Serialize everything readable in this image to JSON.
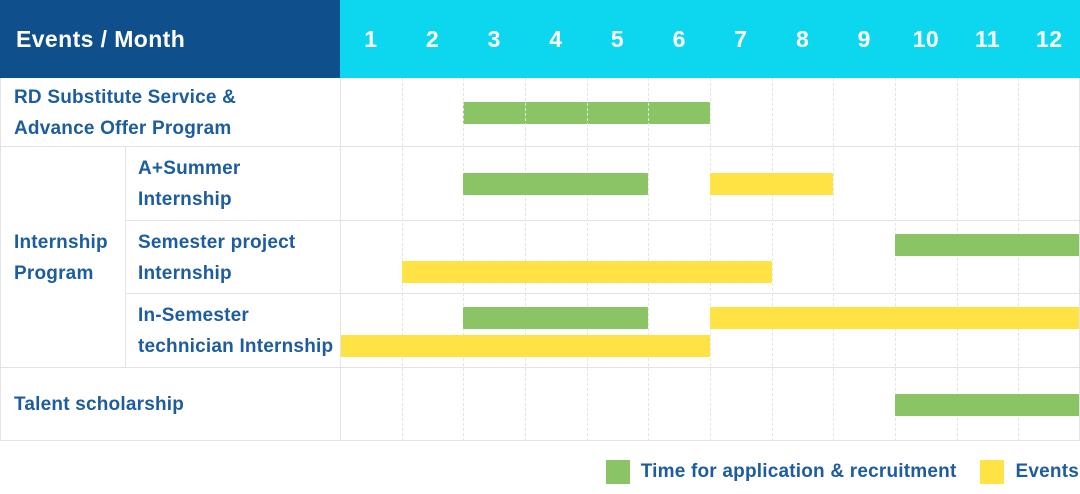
{
  "header": {
    "label_column_title": "Events / Month",
    "month_labels": [
      "1",
      "2",
      "3",
      "4",
      "5",
      "6",
      "7",
      "8",
      "9",
      "10",
      "11",
      "12"
    ]
  },
  "colors": {
    "header_bg": "#0F4F8C",
    "months_bg": "#0CD7EF",
    "label_text": "#1D5C9E",
    "application": "#8AC465",
    "event": "#FFE344"
  },
  "legend": {
    "items": [
      {
        "kind": "application",
        "label": "Time for application & recruitment"
      },
      {
        "kind": "event",
        "label": "Events"
      }
    ]
  },
  "chart_data": {
    "type": "gantt",
    "x_axis": {
      "label": "Month",
      "min": 1,
      "max": 12
    },
    "series_meaning": {
      "application": "Time for application & recruitment",
      "event": "Events"
    },
    "rows": [
      {
        "label": "RD Substitute Service & Advance Offer Program",
        "label_lines": [
          "RD Substitute Service &",
          "Advance Offer Program"
        ],
        "bars": [
          {
            "kind": "application",
            "start": 3,
            "end": 6,
            "lane": "center"
          }
        ]
      },
      {
        "sub": true,
        "group": {
          "label": "Internship Program",
          "label_lines": [
            "Internship",
            "Program"
          ],
          "span": 3
        },
        "label": "A+Summer Internship",
        "label_lines": [
          "A+Summer",
          "Internship"
        ],
        "bars": [
          {
            "kind": "application",
            "start": 3,
            "end": 5,
            "lane": "center"
          },
          {
            "kind": "event",
            "start": 7,
            "end": 8,
            "lane": "center"
          }
        ]
      },
      {
        "sub": true,
        "label": "Semester project Internship",
        "label_lines": [
          "Semester project",
          "Internship"
        ],
        "bars": [
          {
            "kind": "application",
            "start": 10,
            "end": 12,
            "lane": "top"
          },
          {
            "kind": "event",
            "start": 2,
            "end": 7,
            "lane": "bottom"
          }
        ]
      },
      {
        "sub": true,
        "label": "In-Semester technician Internship",
        "label_lines": [
          "In-Semester",
          "technician Internship"
        ],
        "bars": [
          {
            "kind": "application",
            "start": 3,
            "end": 5,
            "lane": "top"
          },
          {
            "kind": "event",
            "start": 7,
            "end": 12,
            "lane": "top"
          },
          {
            "kind": "event",
            "start": 1,
            "end": 6,
            "lane": "bottom"
          }
        ]
      },
      {
        "label": "Talent scholarship",
        "label_lines": [
          "Talent scholarship"
        ],
        "bars": [
          {
            "kind": "application",
            "start": 10,
            "end": 12,
            "lane": "center"
          }
        ]
      }
    ]
  }
}
